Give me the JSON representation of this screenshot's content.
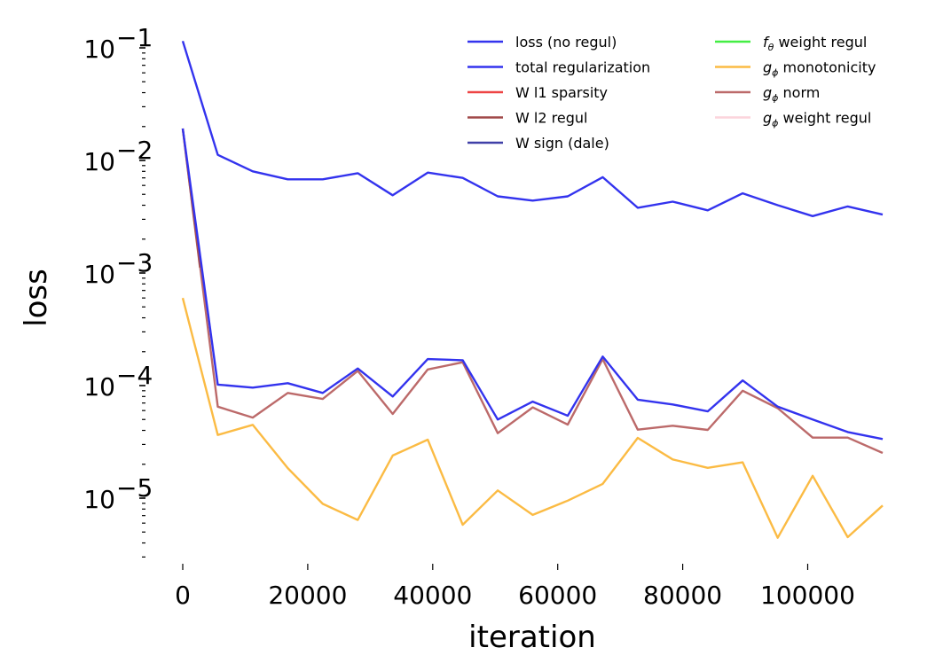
{
  "chart_data": {
    "type": "line",
    "title": "",
    "xlabel": "iteration",
    "ylabel": "loss",
    "yscale": "log",
    "xlim": [
      -5000,
      113000
    ],
    "ylim": [
      2.6e-06,
      0.12
    ],
    "xticks": [
      0,
      20000,
      40000,
      60000,
      80000,
      100000
    ],
    "xtick_labels": [
      "0",
      "20000",
      "40000",
      "60000",
      "80000",
      "100000"
    ],
    "yticks": [
      0.1,
      0.01,
      0.001,
      0.0001,
      1e-05
    ],
    "ytick_labels": [
      {
        "base": "10",
        "exp": "−1"
      },
      {
        "base": "10",
        "exp": "−2"
      },
      {
        "base": "10",
        "exp": "−3"
      },
      {
        "base": "10",
        "exp": "−4"
      },
      {
        "base": "10",
        "exp": "−5"
      }
    ],
    "grid": false,
    "legend": {
      "placement": "top-right",
      "columns": 2
    },
    "x": [
      0,
      5600,
      11200,
      16800,
      22400,
      28000,
      33600,
      39200,
      44800,
      50400,
      56000,
      61600,
      67200,
      72800,
      78400,
      84000,
      89600,
      95200,
      100800,
      106400,
      112000
    ],
    "series": [
      {
        "name": "loss (no regul)",
        "legend_main": "loss (no regul)",
        "legend_sub": "",
        "color": "#3333ee",
        "values": [
          0.115,
          0.0112,
          0.008,
          0.0068,
          0.0068,
          0.0077,
          0.0049,
          0.0078,
          0.007,
          0.0048,
          0.0044,
          0.0048,
          0.0071,
          0.0038,
          0.0043,
          0.0036,
          0.0051,
          0.004,
          0.0032,
          0.0039,
          0.0033
        ]
      },
      {
        "name": "total regularization",
        "legend_main": "total regularization",
        "legend_sub": "",
        "color": "#3333ee",
        "values": [
          0.0192,
          0.000102,
          9.6e-05,
          0.000105,
          8.6e-05,
          0.000142,
          8e-05,
          0.000172,
          0.000168,
          4.99e-05,
          7.2e-05,
          5.4e-05,
          0.000181,
          7.5e-05,
          6.8e-05,
          5.9e-05,
          0.000111,
          6.5e-05,
          5e-05,
          3.87e-05,
          3.35e-05
        ]
      },
      {
        "name": "W l1 sparsity",
        "legend_main": "W l1 sparsity",
        "legend_sub": "",
        "color": "#ee4444",
        "values": []
      },
      {
        "name": "W l2 regul",
        "legend_main": "W l2 regul",
        "legend_sub": "",
        "color": "#a04848",
        "values": [
          0.0192
        ]
      },
      {
        "name": "W sign (dale)",
        "legend_main": "W sign (dale)",
        "legend_sub": "",
        "color": "#4040a8",
        "values": []
      },
      {
        "name": "f_θ weight regul",
        "legend_main": "f",
        "legend_sub": "θ",
        "legend_rest": " weight regul",
        "color": "#44ee44",
        "values": []
      },
      {
        "name": "g_ϕ monotonicity",
        "legend_main": "g",
        "legend_sub": "ϕ",
        "legend_rest": " monotonicity",
        "color": "#fbbb44",
        "values": [
          0.0006,
          3.64e-05,
          4.48e-05,
          1.85e-05,
          8.9e-06,
          6.4e-06,
          2.39e-05,
          3.31e-05,
          5.8e-06,
          1.17e-05,
          7.1e-06,
          9.5e-06,
          1.34e-05,
          3.43e-05,
          2.21e-05,
          1.86e-05,
          2.08e-05,
          4.45e-06,
          1.58e-05,
          4.5e-06,
          8.6e-06
        ]
      },
      {
        "name": "g_ϕ norm",
        "legend_main": "g",
        "legend_sub": "ϕ",
        "legend_rest": " norm",
        "color": "#bc6a6a",
        "values": [
          0.0192,
          6.5e-05,
          5.2e-05,
          8.6e-05,
          7.6e-05,
          0.000135,
          5.6e-05,
          0.000139,
          0.000161,
          3.78e-05,
          6.4e-05,
          4.5e-05,
          0.000172,
          4.06e-05,
          4.4e-05,
          4.04e-05,
          9e-05,
          6.3e-05,
          3.45e-05,
          3.45e-05,
          2.52e-05
        ]
      },
      {
        "name": "g_ϕ weight regul",
        "legend_main": "g",
        "legend_sub": "ϕ",
        "legend_rest": " weight regul",
        "color": "#fcd4dc",
        "values": []
      }
    ]
  }
}
